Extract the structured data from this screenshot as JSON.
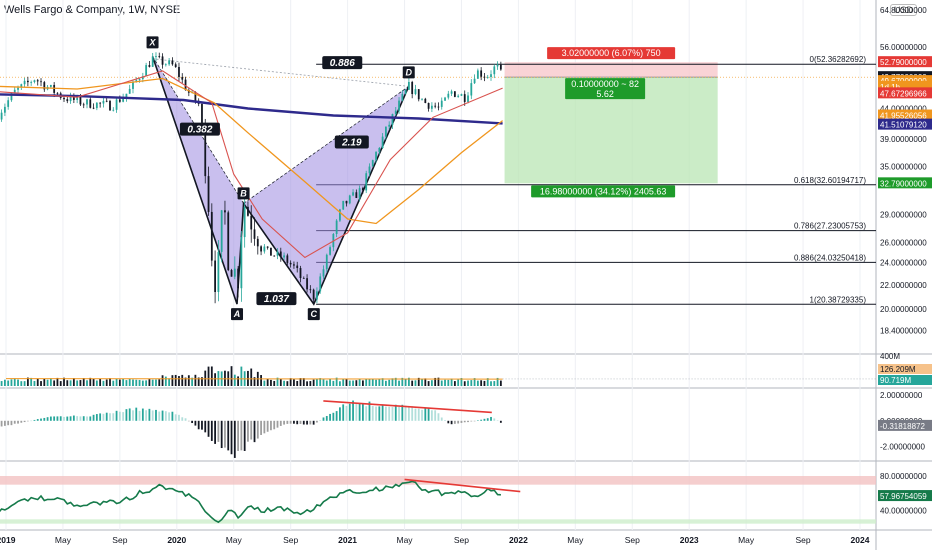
{
  "header": {
    "title": "Wells Fargo & Company, 1W, NYSE",
    "currency_badge": "USD"
  },
  "colors": {
    "candle_up": "#26a69a",
    "candle_down": "#131722",
    "pattern_fill": "#9c8ae0",
    "ma_navy": "#2e2a8c",
    "ma_orange": "#f0961e",
    "ma_red": "#d9534f",
    "stop_zone": "#f8c8cc",
    "target_zone": "#b9e6b4",
    "red_label": "#e53935",
    "green_label": "#1e9b2a",
    "rsi_line": "#157a4a"
  },
  "chart_data": [
    {
      "type": "line",
      "name": "price",
      "y_scale": "log",
      "ylim": [
        16.9,
        64.8
      ],
      "y_ticks": [
        "64.80000000",
        "56.00000000",
        "52.79000000",
        "49.77000000",
        "49.67000000",
        "47.67296966",
        "44.00000000",
        "41.95526056",
        "41.51079120",
        "39.00000000",
        "35.00000000",
        "32.79000000",
        "29.00000000",
        "26.00000000",
        "24.00000000",
        "22.00000000",
        "20.00000000",
        "18.40000000"
      ],
      "x_ticks": [
        "2019",
        "May",
        "Sep",
        "2020",
        "May",
        "Sep",
        "2021",
        "May",
        "Sep",
        "2022",
        "May",
        "Sep",
        "2023",
        "May",
        "Sep",
        "2024"
      ],
      "x_tick_dates": [
        "2019-01",
        "2019-05",
        "2019-09",
        "2020-01",
        "2020-05",
        "2020-09",
        "2021-01",
        "2021-05",
        "2021-09",
        "2022-01",
        "2022-05",
        "2022-09",
        "2023-01",
        "2023-05",
        "2023-09",
        "2024-01"
      ],
      "price_path": [
        [
          "2018-12-15",
          43.0
        ],
        [
          "2019-01-20",
          47.0
        ],
        [
          "2019-03-01",
          49.5
        ],
        [
          "2019-05-01",
          46.0
        ],
        [
          "2019-06-15",
          45.0
        ],
        [
          "2019-08-15",
          44.5
        ],
        [
          "2019-09-20",
          47.0
        ],
        [
          "2019-11-10",
          53.5
        ],
        [
          "2019-12-25",
          52.0
        ],
        [
          "2020-01-25",
          47.0
        ],
        [
          "2020-02-20",
          44.5
        ],
        [
          "2020-03-15",
          25.0
        ],
        [
          "2020-03-25",
          21.5
        ],
        [
          "2020-04-10",
          30.5
        ],
        [
          "2020-04-20",
          24.5
        ],
        [
          "2020-05-10",
          22.5
        ],
        [
          "2020-05-22",
          30.5
        ],
        [
          "2020-06-10",
          28.0
        ],
        [
          "2020-07-10",
          25.0
        ],
        [
          "2020-08-15",
          24.5
        ],
        [
          "2020-09-10",
          23.5
        ],
        [
          "2020-10-01",
          22.0
        ],
        [
          "2020-10-20",
          21.0
        ],
        [
          "2020-11-15",
          24.0
        ],
        [
          "2020-12-20",
          30.0
        ],
        [
          "2021-02-01",
          32.0
        ],
        [
          "2021-03-20",
          40.0
        ],
        [
          "2021-05-10",
          48.0
        ],
        [
          "2021-06-15",
          45.0
        ],
        [
          "2021-07-15",
          44.0
        ],
        [
          "2021-08-10",
          47.0
        ],
        [
          "2021-09-10",
          46.0
        ],
        [
          "2021-10-01",
          51.0
        ],
        [
          "2021-10-25",
          50.0
        ],
        [
          "2021-11-15",
          52.0
        ],
        [
          "2021-11-28",
          49.7
        ]
      ],
      "moving_averages": [
        {
          "color": "navy",
          "path": [
            [
              "2018-12-15",
              46.5
            ],
            [
              "2019-06-01",
              46.2
            ],
            [
              "2020-01-15",
              45.5
            ],
            [
              "2020-06-01",
              44.0
            ],
            [
              "2020-12-01",
              42.8
            ],
            [
              "2021-06-01",
              42.3
            ],
            [
              "2021-11-28",
              41.5
            ]
          ]
        },
        {
          "color": "orange",
          "path": [
            [
              "2018-12-15",
              48.0
            ],
            [
              "2019-06-01",
              47.5
            ],
            [
              "2019-12-01",
              49.5
            ],
            [
              "2020-03-20",
              45.0
            ],
            [
              "2020-06-01",
              40.0
            ],
            [
              "2020-10-01",
              33.0
            ],
            [
              "2021-01-01",
              28.5
            ],
            [
              "2021-03-01",
              28.0
            ],
            [
              "2021-06-01",
              32.0
            ],
            [
              "2021-09-01",
              37.0
            ],
            [
              "2021-11-28",
              41.96
            ]
          ]
        },
        {
          "color": "red",
          "path": [
            [
              "2018-12-15",
              47.0
            ],
            [
              "2019-06-01",
              46.0
            ],
            [
              "2019-12-01",
              51.0
            ],
            [
              "2020-03-15",
              45.0
            ],
            [
              "2020-05-01",
              34.0
            ],
            [
              "2020-07-01",
              28.5
            ],
            [
              "2020-10-01",
              24.5
            ],
            [
              "2021-01-01",
              27.0
            ],
            [
              "2021-04-01",
              36.0
            ],
            [
              "2021-07-01",
              42.5
            ],
            [
              "2021-11-28",
              47.67
            ]
          ]
        }
      ],
      "harmonic_pattern": {
        "points": [
          {
            "label": "X",
            "date": "2019-11-10",
            "price": 54.0
          },
          {
            "label": "A",
            "date": "2020-05-08",
            "price": 20.4
          },
          {
            "label": "B",
            "date": "2020-05-22",
            "price": 30.3
          },
          {
            "label": "C",
            "date": "2020-10-20",
            "price": 20.4
          },
          {
            "label": "D",
            "date": "2021-05-10",
            "price": 48.0
          }
        ],
        "ratios": [
          {
            "text": "0.886",
            "date": "2020-12-20",
            "price": 52.6
          },
          {
            "text": "0.382",
            "date": "2020-02-20",
            "price": 40.5
          },
          {
            "text": "2.19",
            "date": "2021-01-10",
            "price": 38.5
          },
          {
            "text": "1.037",
            "date": "2020-08-01",
            "price": 20.8
          }
        ]
      },
      "fib_levels": [
        {
          "ratio": "0",
          "price": 52.36282692,
          "label": "0(52.36282692)"
        },
        {
          "ratio": "0.618",
          "price": 32.60194717,
          "label": "0.618(32.60194717)"
        },
        {
          "ratio": "0.786",
          "price": 27.23005753,
          "label": "0.786(27.23005753)"
        },
        {
          "ratio": "0.886",
          "price": 24.03250418,
          "label": "0.886(24.03250418)"
        },
        {
          "ratio": "1",
          "price": 20.38729335,
          "label": "1(20.38729335)"
        }
      ],
      "position": {
        "entry": 49.77,
        "stop": 52.79,
        "target": 32.79,
        "start": "2021-11-28",
        "end": "2023-03-01",
        "stop_label": "3.02000000 (6.07%) 750",
        "entry_label_1": "0.10000000 ~ 82",
        "entry_label_2": "5.62",
        "target_label": "16.98000000 (34.12%) 2405.63"
      },
      "price_tags": [
        {
          "value": "52.79000000",
          "price": 52.79,
          "kind": "red"
        },
        {
          "value": "49.77000000",
          "price": 49.77,
          "kind": "dark"
        },
        {
          "value": "49.67000000",
          "price": 49.0,
          "kind": "orange"
        },
        {
          "value": "1d 1h",
          "price": 47.9,
          "kind": "orange-sub"
        },
        {
          "value": "47.67296966",
          "price": 46.7,
          "kind": "red"
        },
        {
          "value": "41.95526056",
          "price": 42.8,
          "kind": "orange"
        },
        {
          "value": "41.51079120",
          "price": 41.3,
          "kind": "navy"
        },
        {
          "value": "32.79000000",
          "price": 32.79,
          "kind": "green"
        }
      ]
    },
    {
      "type": "bar",
      "name": "volume",
      "ylim": [
        0,
        400
      ],
      "y_ticks": [
        "400M"
      ],
      "tags": [
        "126.209M",
        "90.719M"
      ]
    },
    {
      "type": "bar",
      "name": "macd-histogram",
      "ylim": [
        -2.9,
        2.4
      ],
      "y_ticks": [
        "2.00000000",
        "0.00000000",
        "-2.00000000"
      ],
      "current_tag": "-0.31818872"
    },
    {
      "type": "line",
      "name": "rsi",
      "ylim": [
        20,
        95
      ],
      "y_ticks": [
        "80.00000000",
        "40.00000000"
      ],
      "current_tag": "57.96754059"
    }
  ]
}
